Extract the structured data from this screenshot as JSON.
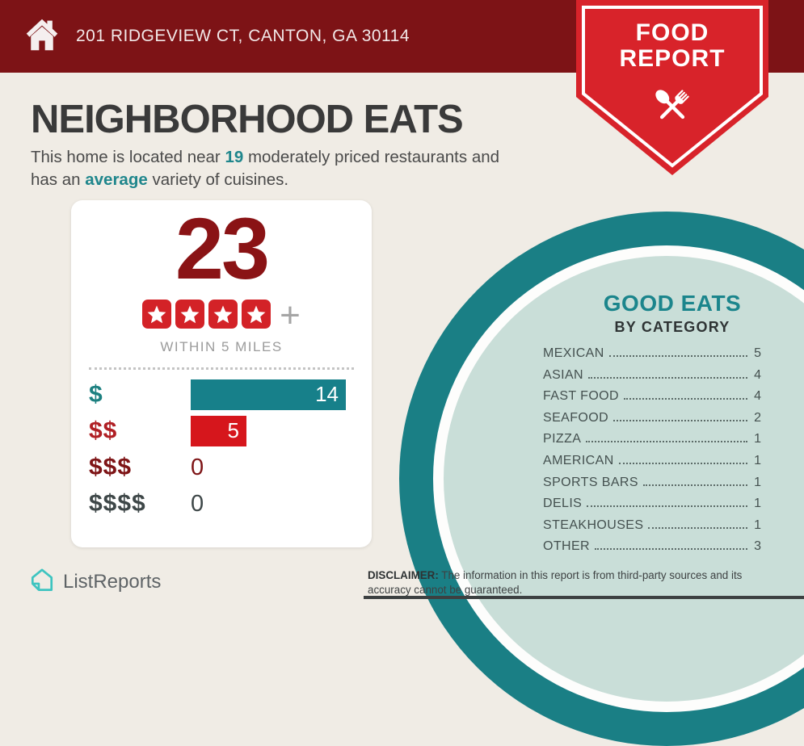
{
  "header": {
    "address": "201 RIDGEVIEW CT, CANTON, GA 30114"
  },
  "ribbon": {
    "line1": "FOOD",
    "line2": "REPORT"
  },
  "intro": {
    "title": "NEIGHBORHOOD EATS",
    "line1_pre": "This home is located near ",
    "count": "19",
    "line1_post": " moderately priced restaurants and",
    "line2_pre": "has an ",
    "highlight": "average",
    "line2_post": " variety of cuisines."
  },
  "summary_card": {
    "total": "23",
    "rating_stars": 4,
    "plus_label": "+",
    "radius_label": "WITHIN 5 MILES"
  },
  "chart_data": {
    "type": "bar",
    "orientation": "horizontal",
    "categories": [
      "$",
      "$$",
      "$$$",
      "$$$$"
    ],
    "values": [
      14,
      5,
      0,
      0
    ],
    "xlim": [
      0,
      14
    ],
    "bar_colors": [
      "#17808A",
      "#D6161C",
      null,
      null
    ],
    "label_colors": [
      "#1C8080",
      "#B01F24",
      "#7E1416",
      "#3E4748"
    ],
    "value_label_inside": true,
    "grid": false,
    "legend": false
  },
  "good_eats": {
    "title": "GOOD EATS",
    "subtitle": "BY CATEGORY",
    "categories": [
      {
        "label": "MEXICAN",
        "value": "5"
      },
      {
        "label": "ASIAN",
        "value": "4"
      },
      {
        "label": "FAST FOOD",
        "value": "4"
      },
      {
        "label": "SEAFOOD",
        "value": "2"
      },
      {
        "label": "PIZZA",
        "value": "1"
      },
      {
        "label": "AMERICAN",
        "value": "1"
      },
      {
        "label": "SPORTS BARS",
        "value": "1"
      },
      {
        "label": "DELIS",
        "value": "1"
      },
      {
        "label": "STEAKHOUSES",
        "value": "1"
      },
      {
        "label": "OTHER",
        "value": "3"
      }
    ]
  },
  "footer": {
    "brand": "ListReports",
    "disclaimer_label": "DISCLAIMER:",
    "disclaimer_text": " The information in this report is from third-party sources and its accuracy cannot be guaranteed."
  },
  "colors": {
    "header_red": "#7D1316",
    "ribbon_red": "#D8232A",
    "star_red": "#D32227",
    "count_maroon": "#8A1315",
    "teal": "#17808A",
    "circle_teal": "#1A7F85",
    "circle_inner": "#C9DED8",
    "background": "#F0ECE5",
    "brand_turquoise": "#3EC4C0"
  },
  "icons": {
    "home": "home-icon",
    "utensils": "fork-and-spoon-icon",
    "star": "star-icon",
    "brand_mark": "listreports-house-icon"
  }
}
